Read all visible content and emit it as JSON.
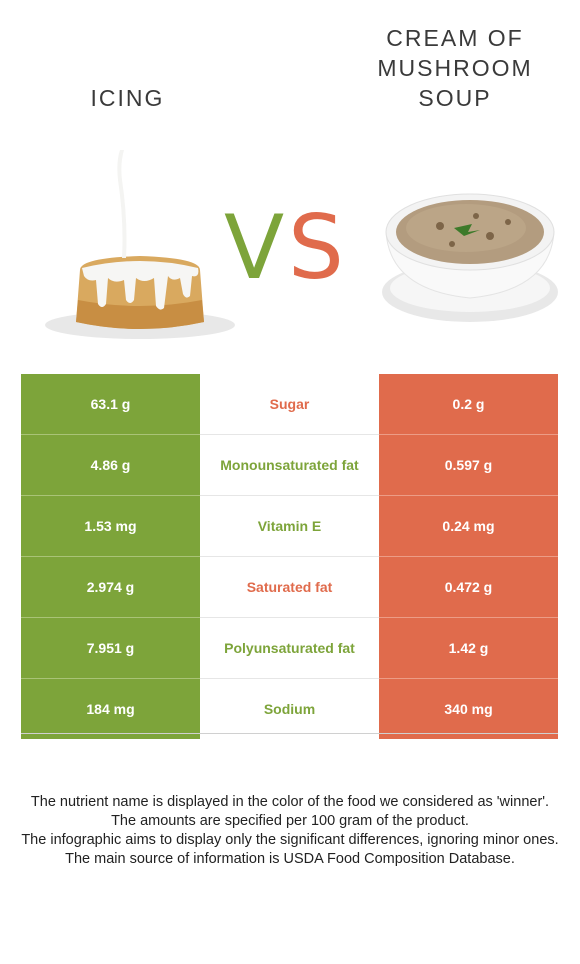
{
  "left_food": {
    "title": "ICING",
    "color": "#7da43a"
  },
  "right_food": {
    "title_lines": [
      "CREAM OF",
      "MUSHROOM",
      "SOUP"
    ],
    "color": "#e06b4c"
  },
  "vs": {
    "v": "V",
    "s": "S"
  },
  "rows": [
    {
      "left": "63.1 g",
      "nutrient": "Sugar",
      "right": "0.2 g",
      "winner": "right"
    },
    {
      "left": "4.86 g",
      "nutrient": "Monounsaturated fat",
      "right": "0.597 g",
      "winner": "left"
    },
    {
      "left": "1.53 mg",
      "nutrient": "Vitamin E",
      "right": "0.24 mg",
      "winner": "left"
    },
    {
      "left": "2.974 g",
      "nutrient": "Saturated fat",
      "right": "0.472 g",
      "winner": "right"
    },
    {
      "left": "7.951 g",
      "nutrient": "Polyunsaturated fat",
      "right": "1.42 g",
      "winner": "left"
    },
    {
      "left": "184 mg",
      "nutrient": "Sodium",
      "right": "340 mg",
      "winner": "left"
    }
  ],
  "footer": [
    "The nutrient name is displayed in the color of the food we considered as 'winner'.",
    "The amounts are specified per 100 gram of the product.",
    "The infographic aims to display only the significant differences, ignoring minor ones.",
    "The main source of information is USDA Food Composition Database."
  ]
}
